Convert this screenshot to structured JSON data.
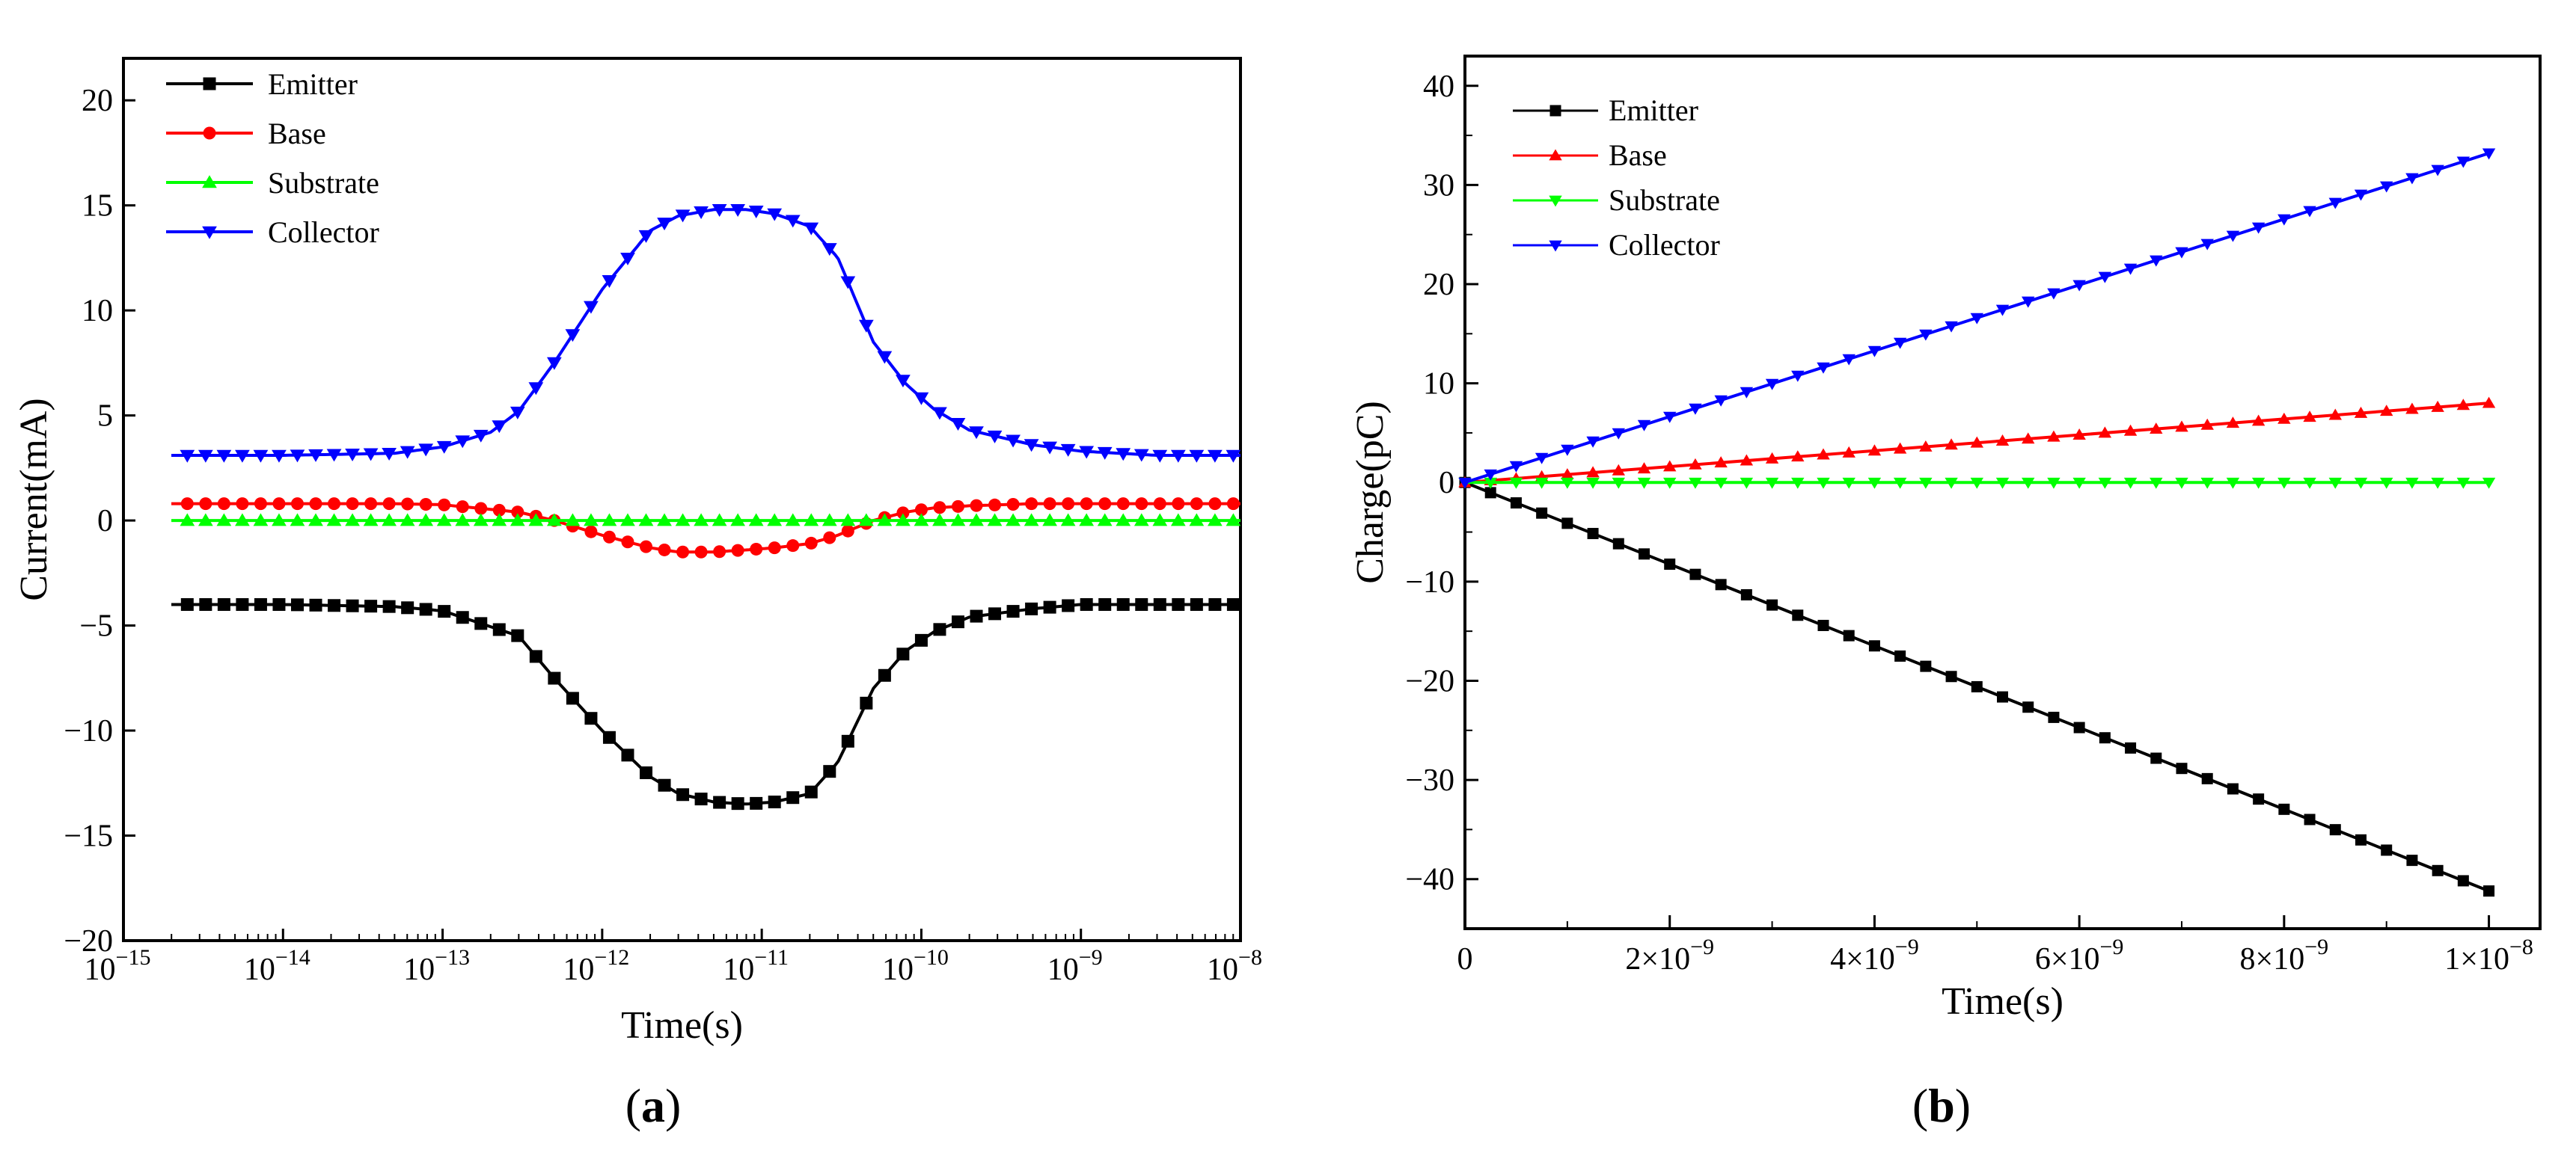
{
  "chart_data": [
    {
      "panel": "(a)",
      "type": "line",
      "xscale": "log",
      "xlabel": "Time(s)",
      "ylabel": "Current(mA)",
      "xlim": [
        1e-15,
        1e-08
      ],
      "ylim": [
        -20,
        22
      ],
      "xticks": [
        {
          "value": 1e-15,
          "base": "10",
          "exp": "−15"
        },
        {
          "value": 1e-14,
          "base": "10",
          "exp": "−14"
        },
        {
          "value": 1e-13,
          "base": "10",
          "exp": "−13"
        },
        {
          "value": 1e-12,
          "base": "10",
          "exp": "−12"
        },
        {
          "value": 1e-11,
          "base": "10",
          "exp": "−11"
        },
        {
          "value": 1e-10,
          "base": "10",
          "exp": "−10"
        },
        {
          "value": 1e-09,
          "base": "10",
          "exp": "−9"
        },
        {
          "value": 1e-08,
          "base": "10",
          "exp": "−8"
        }
      ],
      "yticks": [
        {
          "value": 20,
          "label": "20"
        },
        {
          "value": 15,
          "label": "15"
        },
        {
          "value": 10,
          "label": "10"
        },
        {
          "value": 5,
          "label": "5"
        },
        {
          "value": 0,
          "label": "0"
        },
        {
          "value": -5,
          "label": "−5"
        },
        {
          "value": -10,
          "label": "−10"
        },
        {
          "value": -15,
          "label": "−15"
        },
        {
          "value": -20,
          "label": "−20"
        }
      ],
      "legend_position": "top-left",
      "series": [
        {
          "name": "Emitter",
          "color": "#000000",
          "marker": "square",
          "x": [
            2e-15,
            1e-14,
            5e-14,
            1e-13,
            3e-13,
            5e-13,
            1e-12,
            2e-12,
            3e-12,
            5e-12,
            8e-12,
            1.2e-11,
            2e-11,
            3e-11,
            5e-11,
            8e-11,
            1.2e-10,
            2e-10,
            5e-10,
            1e-09,
            3e-09,
            1e-08
          ],
          "y": [
            -4.0,
            -4.0,
            -4.1,
            -4.3,
            -5.5,
            -7.5,
            -10.0,
            -12.2,
            -13.0,
            -13.4,
            -13.5,
            -13.4,
            -13.0,
            -11.5,
            -8.0,
            -6.2,
            -5.3,
            -4.6,
            -4.2,
            -4.0,
            -4.0,
            -4.0
          ]
        },
        {
          "name": "Base",
          "color": "#ff0000",
          "marker": "circle",
          "x": [
            2e-15,
            1e-14,
            5e-14,
            1e-13,
            3e-13,
            5e-13,
            1e-12,
            2e-12,
            3e-12,
            5e-12,
            8e-12,
            1.2e-11,
            2e-11,
            3e-11,
            5e-11,
            8e-11,
            1.2e-10,
            2e-10,
            5e-10,
            1e-09,
            3e-09,
            1e-08
          ],
          "y": [
            0.8,
            0.8,
            0.8,
            0.75,
            0.4,
            0.0,
            -0.7,
            -1.3,
            -1.5,
            -1.5,
            -1.4,
            -1.3,
            -1.1,
            -0.7,
            0.0,
            0.4,
            0.6,
            0.7,
            0.8,
            0.8,
            0.8,
            0.8
          ]
        },
        {
          "name": "Substrate",
          "color": "#00ff00",
          "marker": "triangle-up",
          "x": [
            2e-15,
            1e-14,
            1e-13,
            1e-12,
            1e-11,
            1e-10,
            1e-09,
            1e-08
          ],
          "y": [
            0.0,
            0.0,
            0.0,
            0.0,
            0.0,
            0.0,
            0.0,
            0.0
          ]
        },
        {
          "name": "Collector",
          "color": "#0000ff",
          "marker": "triangle-down",
          "x": [
            2e-15,
            1e-14,
            5e-14,
            1e-13,
            2e-13,
            3e-13,
            5e-13,
            1e-12,
            2e-12,
            3e-12,
            5e-12,
            8e-12,
            1.2e-11,
            2e-11,
            3e-11,
            5e-11,
            8e-11,
            1.2e-10,
            2e-10,
            5e-10,
            1e-09,
            3e-09,
            1e-08
          ],
          "y": [
            3.1,
            3.1,
            3.2,
            3.5,
            4.2,
            5.2,
            7.5,
            11.0,
            13.8,
            14.5,
            14.8,
            14.8,
            14.6,
            14.0,
            12.5,
            8.5,
            6.5,
            5.3,
            4.3,
            3.6,
            3.3,
            3.1,
            3.1
          ]
        }
      ]
    },
    {
      "panel": "(b)",
      "type": "line",
      "xlabel": "Time(s)",
      "ylabel": "Charge(pC)",
      "xlim": [
        0,
        1.05e-08
      ],
      "ylim": [
        -45,
        43
      ],
      "xticks": [
        {
          "value": 0,
          "label": "0"
        },
        {
          "value": 2e-09,
          "mant": "2×10",
          "exp": "−9"
        },
        {
          "value": 4e-09,
          "mant": "4×10",
          "exp": "−9"
        },
        {
          "value": 6e-09,
          "mant": "6×10",
          "exp": "−9"
        },
        {
          "value": 8e-09,
          "mant": "8×10",
          "exp": "−9"
        },
        {
          "value": 1e-08,
          "mant": "1×10",
          "exp": "−8"
        }
      ],
      "yticks": [
        {
          "value": 40,
          "label": "40"
        },
        {
          "value": 30,
          "label": "30"
        },
        {
          "value": 20,
          "label": "20"
        },
        {
          "value": 10,
          "label": "10"
        },
        {
          "value": 0,
          "label": "0"
        },
        {
          "value": -10,
          "label": "−10"
        },
        {
          "value": -20,
          "label": "−20"
        },
        {
          "value": -30,
          "label": "−30"
        },
        {
          "value": -40,
          "label": "−40"
        }
      ],
      "legend_position": "top-left",
      "series": [
        {
          "name": "Emitter",
          "color": "#000000",
          "marker": "square",
          "x": [
            0,
            1e-08
          ],
          "y": [
            0,
            -41.2
          ]
        },
        {
          "name": "Base",
          "color": "#ff0000",
          "marker": "triangle-up",
          "x": [
            0,
            1e-08
          ],
          "y": [
            0,
            8.0
          ]
        },
        {
          "name": "Substrate",
          "color": "#00ff00",
          "marker": "triangle-down",
          "x": [
            0,
            1e-08
          ],
          "y": [
            0,
            0
          ]
        },
        {
          "name": "Collector",
          "color": "#0000ff",
          "marker": "triangle-down",
          "x": [
            0,
            1e-08
          ],
          "y": [
            0,
            33.2
          ]
        }
      ]
    }
  ]
}
